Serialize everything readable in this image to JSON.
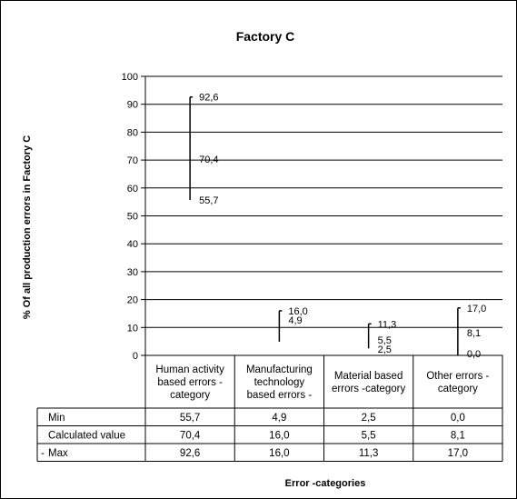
{
  "chart_data": {
    "type": "table",
    "title": "Factory C",
    "xlabel": "Error -categories",
    "ylabel": "% Of all production errors in Factory C",
    "ylim": [
      0,
      100
    ],
    "yticks": [
      0,
      10,
      20,
      30,
      40,
      50,
      60,
      70,
      80,
      90,
      100
    ],
    "ytick_labels": [
      "0",
      "10",
      "20",
      "30",
      "40",
      "50",
      "60",
      "70",
      "80",
      "90",
      "100"
    ],
    "grid": true,
    "categories": [
      [
        "Human activity",
        "based errors -",
        "category"
      ],
      [
        "Manufacturing",
        "technology",
        "based errors -"
      ],
      [
        "Material based",
        "errors -category"
      ],
      [
        "Other errors -",
        "category"
      ]
    ],
    "series": [
      {
        "name": "Min",
        "values": [
          55.7,
          4.9,
          2.5,
          0.0
        ],
        "labels": [
          "55,7",
          "4,9",
          "2,5",
          "0,0"
        ]
      },
      {
        "name": "Calculated value",
        "values": [
          70.4,
          16.0,
          5.5,
          8.1
        ],
        "labels": [
          "70,4",
          "16,0",
          "5,5",
          "8,1"
        ]
      },
      {
        "name": "Max",
        "values": [
          92.6,
          16.0,
          11.3,
          17.0
        ],
        "labels": [
          "92,6",
          "16,0",
          "11,3",
          "17,0"
        ]
      }
    ],
    "legend_marker": "-",
    "point_labels": [
      [
        "92,6",
        "70,4",
        "55,7"
      ],
      [
        "16,0",
        "4,9"
      ],
      [
        "11,3",
        "5,5",
        "2,5"
      ],
      [
        "17,0",
        "8,1",
        "0,0"
      ]
    ]
  }
}
